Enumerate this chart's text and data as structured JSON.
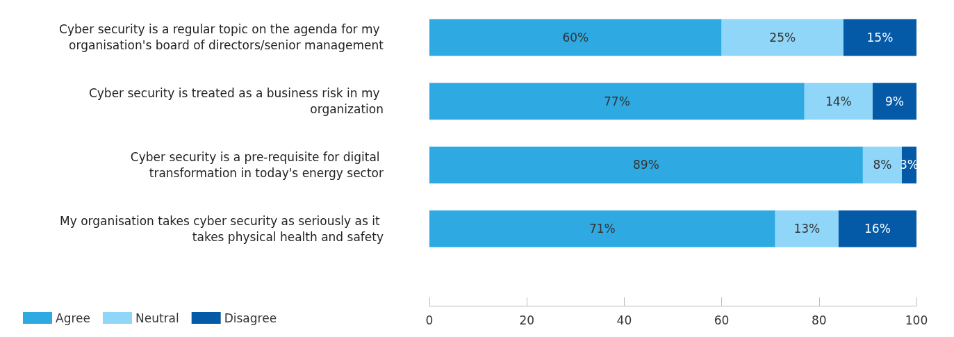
{
  "chart_data": {
    "type": "bar",
    "orientation": "horizontal",
    "stacked": true,
    "categories": [
      "Cyber security is a regular topic on the agenda for my organisation's board of directors/senior management",
      "Cyber security is treated as a business risk in my organization",
      "Cyber security is a pre-requisite for digital transformation in today's energy sector",
      "My organisation takes cyber security as seriously as it takes physical health and safety"
    ],
    "series": [
      {
        "name": "Agree",
        "color": "#2ea9e1",
        "values": [
          60,
          77,
          89,
          71
        ],
        "value_labels": [
          "60%",
          "77%",
          "89%",
          "71%"
        ]
      },
      {
        "name": "Neutral",
        "color": "#8fd6f8",
        "values": [
          25,
          14,
          8,
          13
        ],
        "value_labels": [
          "25%",
          "14%",
          "8%",
          "13%"
        ]
      },
      {
        "name": "Disagree",
        "color": "#055aa8",
        "values": [
          15,
          9,
          3,
          16
        ],
        "value_labels": [
          "15%",
          "9%",
          "3%",
          "16%"
        ]
      }
    ],
    "xlim": [
      0,
      100
    ],
    "xticks": [
      0,
      20,
      40,
      60,
      80,
      100
    ],
    "grid": false,
    "legend": "bottom left"
  }
}
